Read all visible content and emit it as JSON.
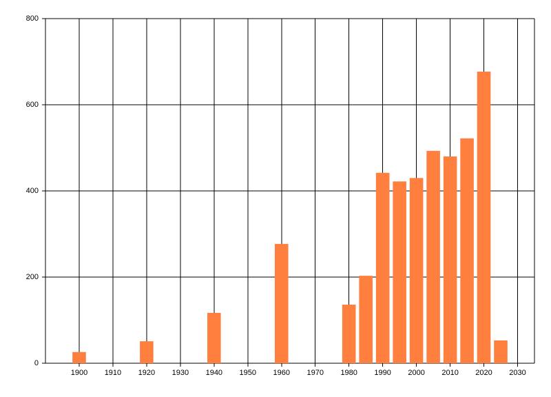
{
  "chart_data": {
    "type": "bar",
    "x": [
      1900,
      1920,
      1940,
      1960,
      1980,
      1985,
      1990,
      1995,
      2000,
      2005,
      2010,
      2015,
      2020,
      2025
    ],
    "values": [
      26,
      51,
      117,
      277,
      136,
      203,
      442,
      422,
      430,
      493,
      480,
      522,
      677,
      53
    ],
    "color": "#ff7f3f",
    "xlim": [
      1890,
      2035
    ],
    "xticks": [
      1900,
      1910,
      1920,
      1930,
      1940,
      1950,
      1960,
      1970,
      1980,
      1990,
      2000,
      2010,
      2020,
      2030
    ],
    "ylim": [
      0,
      800
    ],
    "yticks": [
      0,
      200,
      400,
      600,
      800
    ],
    "grid": true
  }
}
